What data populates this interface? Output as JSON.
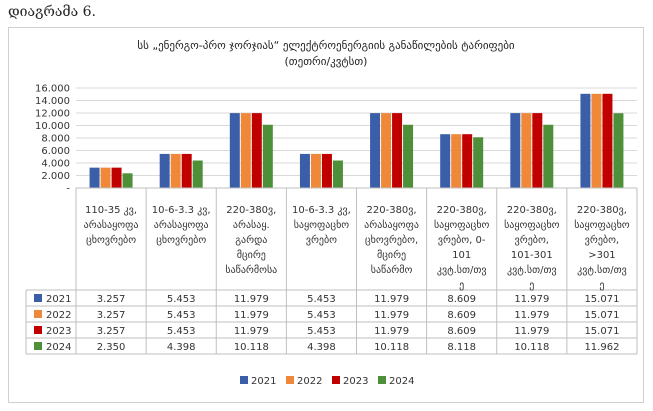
{
  "caption": "დიაგრამა 6.",
  "chart_data": {
    "type": "bar",
    "title_line1": "სს „ენერგო-პრო ჯორჯიას“ ელექტროენერგიის განაწილების ტარიფები",
    "title_line2": "(თეთრი/კვტსთ)",
    "categories": [
      [
        "110-35 კვ,",
        "არასაყოფა",
        "ცხოვრებო"
      ],
      [
        "10-6-3.3 კვ,",
        "არასაყოფა",
        "ცხოვრებო"
      ],
      [
        "220-380ვ,",
        "არასაყ.",
        "გარდა",
        "მცირე",
        "საწარმოსა"
      ],
      [
        "10-6-3.3 კვ,",
        "საყოფაცხო",
        "ვრებო"
      ],
      [
        "220-380ვ,",
        "არასაყოფა",
        "ცხოვრებო,",
        "მცირე",
        "საწარმო"
      ],
      [
        "220-380ვ,",
        "საყოფაცხო",
        "ვრებო, 0-",
        "101",
        "კვტ.სთ/თვ",
        "ე"
      ],
      [
        "220-380ვ,",
        "საყოფაცხო",
        "ვრებო,",
        "101-301",
        "კვტ.სთ/თვ",
        "ე"
      ],
      [
        "220-380ვ,",
        "საყოფაცხო",
        "ვრებო,",
        ">301",
        "კვტ.სთ/თვ",
        "ე"
      ]
    ],
    "series": [
      {
        "name": "2021",
        "color": "#3a5ea8",
        "values": [
          3.257,
          5.453,
          11.979,
          5.453,
          11.979,
          8.609,
          11.979,
          15.071
        ],
        "labels": [
          "3.257",
          "5.453",
          "11.979",
          "5.453",
          "11.979",
          "8.609",
          "11.979",
          "15.071"
        ]
      },
      {
        "name": "2022",
        "color": "#f0883a",
        "values": [
          3.257,
          5.453,
          11.979,
          5.453,
          11.979,
          8.609,
          11.979,
          15.071
        ],
        "labels": [
          "3.257",
          "5.453",
          "11.979",
          "5.453",
          "11.979",
          "8.609",
          "11.979",
          "15.071"
        ]
      },
      {
        "name": "2023",
        "color": "#c00000",
        "values": [
          3.257,
          5.453,
          11.979,
          5.453,
          11.979,
          8.609,
          11.979,
          15.071
        ],
        "labels": [
          "3.257",
          "5.453",
          "11.979",
          "5.453",
          "11.979",
          "8.609",
          "11.979",
          "15.071"
        ]
      },
      {
        "name": "2024",
        "color": "#4e8f3a",
        "values": [
          2.35,
          4.398,
          10.118,
          4.398,
          10.118,
          8.118,
          10.118,
          11.962
        ],
        "labels": [
          "2.350",
          "4.398",
          "10.118",
          "4.398",
          "10.118",
          "8.118",
          "10.118",
          "11.962"
        ]
      }
    ],
    "yticks": [
      "-",
      "2.000",
      "4.000",
      "6.000",
      "8.000",
      "10.000",
      "12.000",
      "14.000",
      "16.000"
    ],
    "ylim": [
      0,
      16
    ],
    "grid": true,
    "legend_position": "bottom"
  }
}
